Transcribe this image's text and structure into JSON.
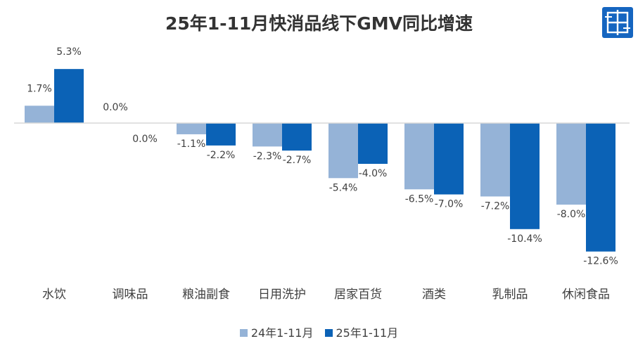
{
  "chart_data": {
    "type": "bar",
    "title": "25年1-11月快消品线下GMV同比增速",
    "categories": [
      "水饮",
      "调味品",
      "粮油副食",
      "日用洗护",
      "居家百货",
      "酒类",
      "乳制品",
      "休闲食品"
    ],
    "series": [
      {
        "name": "24年1-11月",
        "color": "#95B3D7",
        "values": [
          1.7,
          0.0,
          -1.1,
          -2.3,
          -5.4,
          -6.5,
          -7.2,
          -8.0
        ]
      },
      {
        "name": "25年1-11月",
        "color": "#0B62B6",
        "values": [
          5.3,
          0.0,
          -2.2,
          -2.7,
          -4.0,
          -7.0,
          -10.4,
          -12.6
        ]
      }
    ],
    "value_labels": [
      [
        "1.7%",
        "0.0%",
        "-1.1%",
        "-2.3%",
        "-5.4%",
        "-6.5%",
        "-7.2%",
        "-8.0%"
      ],
      [
        "5.3%",
        "0.0%",
        "-2.2%",
        "-2.7%",
        "-4.0%",
        "-7.0%",
        "-10.4%",
        "-12.6%"
      ]
    ],
    "xlabel": "",
    "ylabel": "",
    "grid": false,
    "legend_position": "bottom"
  },
  "logo": {
    "icon": "grid-logo-icon",
    "color": "#1565C0"
  }
}
